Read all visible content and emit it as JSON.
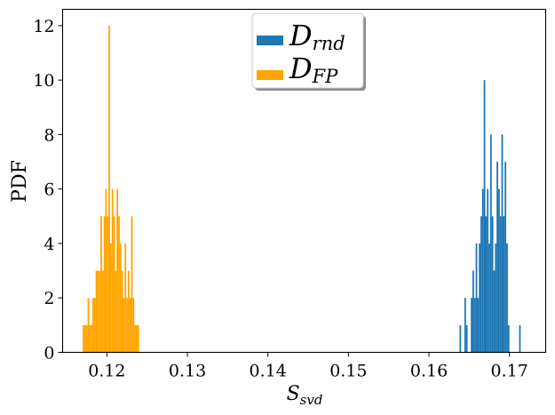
{
  "chart_data": {
    "type": "bar",
    "title": "",
    "xlabel": "S",
    "xlabel_sub": "svd",
    "ylabel": "PDF",
    "xlim": [
      0.1145,
      0.1745
    ],
    "ylim": [
      0,
      12.6
    ],
    "x_ticks": [
      0.12,
      0.13,
      0.14,
      0.15,
      0.16,
      0.17
    ],
    "x_tick_labels": [
      "0.12",
      "0.13",
      "0.14",
      "0.15",
      "0.16",
      "0.17"
    ],
    "y_ticks": [
      0,
      2,
      4,
      6,
      8,
      10,
      12
    ],
    "y_tick_labels": [
      "0",
      "2",
      "4",
      "6",
      "8",
      "10",
      "12"
    ],
    "grid": false,
    "legend_position": "top-center",
    "series": [
      {
        "name": "D",
        "name_sub": "rnd",
        "color": "#1f77b4",
        "bins": [
          {
            "x0": 0.1638,
            "x1": 0.164,
            "y": 1
          },
          {
            "x0": 0.1644,
            "x1": 0.1646,
            "y": 2
          },
          {
            "x0": 0.1646,
            "x1": 0.1648,
            "y": 1
          },
          {
            "x0": 0.1652,
            "x1": 0.1654,
            "y": 2
          },
          {
            "x0": 0.1654,
            "x1": 0.1656,
            "y": 3
          },
          {
            "x0": 0.1656,
            "x1": 0.1658,
            "y": 2
          },
          {
            "x0": 0.1658,
            "x1": 0.166,
            "y": 4
          },
          {
            "x0": 0.166,
            "x1": 0.1662,
            "y": 2
          },
          {
            "x0": 0.1662,
            "x1": 0.1664,
            "y": 4
          },
          {
            "x0": 0.1664,
            "x1": 0.1666,
            "y": 5
          },
          {
            "x0": 0.1666,
            "x1": 0.1668,
            "y": 6
          },
          {
            "x0": 0.1668,
            "x1": 0.167,
            "y": 10
          },
          {
            "x0": 0.167,
            "x1": 0.1672,
            "y": 5
          },
          {
            "x0": 0.1672,
            "x1": 0.1674,
            "y": 6
          },
          {
            "x0": 0.1674,
            "x1": 0.1676,
            "y": 4
          },
          {
            "x0": 0.1676,
            "x1": 0.1678,
            "y": 8
          },
          {
            "x0": 0.1678,
            "x1": 0.168,
            "y": 5
          },
          {
            "x0": 0.168,
            "x1": 0.1682,
            "y": 3
          },
          {
            "x0": 0.1682,
            "x1": 0.1684,
            "y": 4
          },
          {
            "x0": 0.1684,
            "x1": 0.1686,
            "y": 7
          },
          {
            "x0": 0.1686,
            "x1": 0.1688,
            "y": 6
          },
          {
            "x0": 0.1688,
            "x1": 0.169,
            "y": 5
          },
          {
            "x0": 0.169,
            "x1": 0.1692,
            "y": 8
          },
          {
            "x0": 0.1692,
            "x1": 0.1694,
            "y": 5
          },
          {
            "x0": 0.1694,
            "x1": 0.1696,
            "y": 7
          },
          {
            "x0": 0.1696,
            "x1": 0.1698,
            "y": 4
          },
          {
            "x0": 0.1698,
            "x1": 0.17,
            "y": 1
          },
          {
            "x0": 0.1712,
            "x1": 0.1714,
            "y": 1
          }
        ]
      },
      {
        "name": "D",
        "name_sub": "FP",
        "color": "#ffa500",
        "bins": [
          {
            "x0": 0.117,
            "x1": 0.1172,
            "y": 1
          },
          {
            "x0": 0.1172,
            "x1": 0.1174,
            "y": 1
          },
          {
            "x0": 0.1174,
            "x1": 0.1176,
            "y": 1
          },
          {
            "x0": 0.1176,
            "x1": 0.1178,
            "y": 2
          },
          {
            "x0": 0.1178,
            "x1": 0.118,
            "y": 1
          },
          {
            "x0": 0.118,
            "x1": 0.1182,
            "y": 1
          },
          {
            "x0": 0.1182,
            "x1": 0.1184,
            "y": 2
          },
          {
            "x0": 0.1184,
            "x1": 0.1186,
            "y": 2
          },
          {
            "x0": 0.1186,
            "x1": 0.1188,
            "y": 3
          },
          {
            "x0": 0.1188,
            "x1": 0.119,
            "y": 3
          },
          {
            "x0": 0.119,
            "x1": 0.1192,
            "y": 3
          },
          {
            "x0": 0.1192,
            "x1": 0.1194,
            "y": 5
          },
          {
            "x0": 0.1194,
            "x1": 0.1196,
            "y": 3
          },
          {
            "x0": 0.1196,
            "x1": 0.1198,
            "y": 5
          },
          {
            "x0": 0.1198,
            "x1": 0.12,
            "y": 6
          },
          {
            "x0": 0.12,
            "x1": 0.1202,
            "y": 5
          },
          {
            "x0": 0.1202,
            "x1": 0.1204,
            "y": 12
          },
          {
            "x0": 0.1204,
            "x1": 0.1206,
            "y": 4
          },
          {
            "x0": 0.1206,
            "x1": 0.1208,
            "y": 6
          },
          {
            "x0": 0.1208,
            "x1": 0.121,
            "y": 5
          },
          {
            "x0": 0.121,
            "x1": 0.1212,
            "y": 3
          },
          {
            "x0": 0.1212,
            "x1": 0.1214,
            "y": 6
          },
          {
            "x0": 0.1214,
            "x1": 0.1216,
            "y": 5
          },
          {
            "x0": 0.1216,
            "x1": 0.1218,
            "y": 4
          },
          {
            "x0": 0.1218,
            "x1": 0.122,
            "y": 3
          },
          {
            "x0": 0.122,
            "x1": 0.1222,
            "y": 2
          },
          {
            "x0": 0.1222,
            "x1": 0.1224,
            "y": 4
          },
          {
            "x0": 0.1224,
            "x1": 0.1226,
            "y": 2
          },
          {
            "x0": 0.1226,
            "x1": 0.1228,
            "y": 3
          },
          {
            "x0": 0.1228,
            "x1": 0.123,
            "y": 2
          },
          {
            "x0": 0.123,
            "x1": 0.1232,
            "y": 5
          },
          {
            "x0": 0.1232,
            "x1": 0.1234,
            "y": 2
          },
          {
            "x0": 0.1234,
            "x1": 0.1236,
            "y": 1
          },
          {
            "x0": 0.1236,
            "x1": 0.1238,
            "y": 1
          },
          {
            "x0": 0.1238,
            "x1": 0.124,
            "y": 1
          }
        ]
      }
    ]
  }
}
